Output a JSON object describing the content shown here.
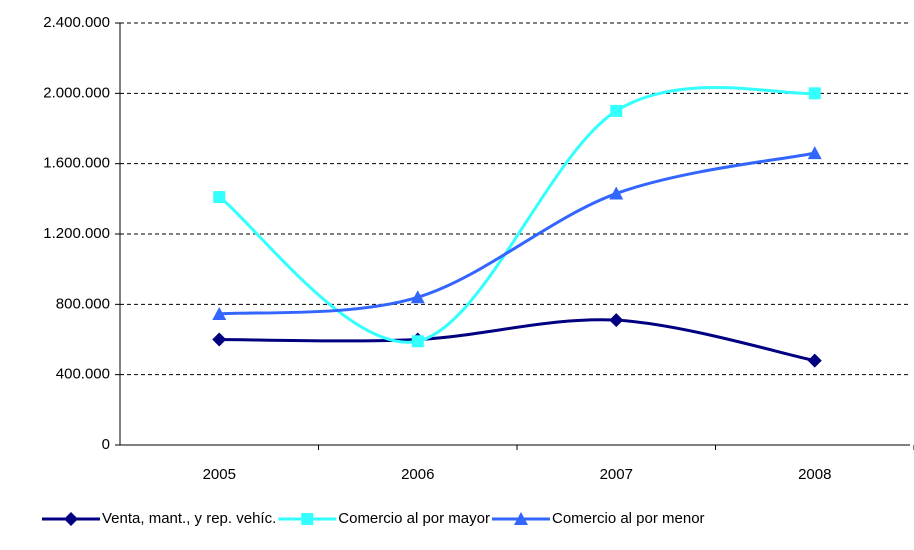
{
  "chart_data": {
    "type": "line",
    "smooth": true,
    "grid": true,
    "legend": "bottom",
    "categories": [
      "2005",
      "2006",
      "2007",
      "2008"
    ],
    "ylim": [
      0,
      2400000
    ],
    "yticks": [
      0,
      {
        "value": 400000,
        "label": "400.000"
      },
      {
        "value": 800000,
        "label": "800.000"
      },
      {
        "value": 1200000,
        "label": "1.200.000"
      },
      {
        "value": 1600000,
        "label": "1.600.000"
      },
      {
        "value": 2000000,
        "label": "2.000.000"
      },
      {
        "value": 2400000,
        "label": "2.400.000"
      }
    ],
    "series": [
      {
        "name": "Venta, mant., y rep. vehíc.",
        "color": "#000080",
        "marker": "diamond",
        "values": [
          600000,
          600000,
          710000,
          480000
        ]
      },
      {
        "name": "Comercio al por mayor",
        "color": "#33ffff",
        "marker": "square",
        "values": [
          1410000,
          590000,
          1900000,
          2000000
        ]
      },
      {
        "name": "Comercio al por menor",
        "color": "#3366ff",
        "marker": "triangle",
        "values": [
          745000,
          840000,
          1430000,
          1660000
        ]
      }
    ]
  }
}
